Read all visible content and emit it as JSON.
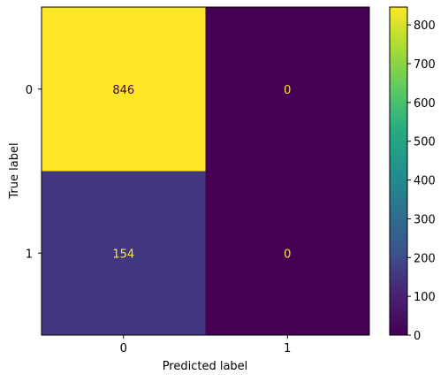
{
  "chart_data": {
    "type": "heatmap",
    "title": "",
    "xlabel": "Predicted label",
    "ylabel": "True label",
    "x_categories": [
      "0",
      "1"
    ],
    "y_categories": [
      "0",
      "1"
    ],
    "values": [
      [
        846,
        0
      ],
      [
        154,
        0
      ]
    ],
    "colormap": "viridis",
    "text_color_on_light": "#440154",
    "text_color_on_dark": "#fde725",
    "colorbar": {
      "min": 0,
      "max": 846,
      "ticks": [
        0,
        100,
        200,
        300,
        400,
        500,
        600,
        700,
        800
      ]
    }
  }
}
